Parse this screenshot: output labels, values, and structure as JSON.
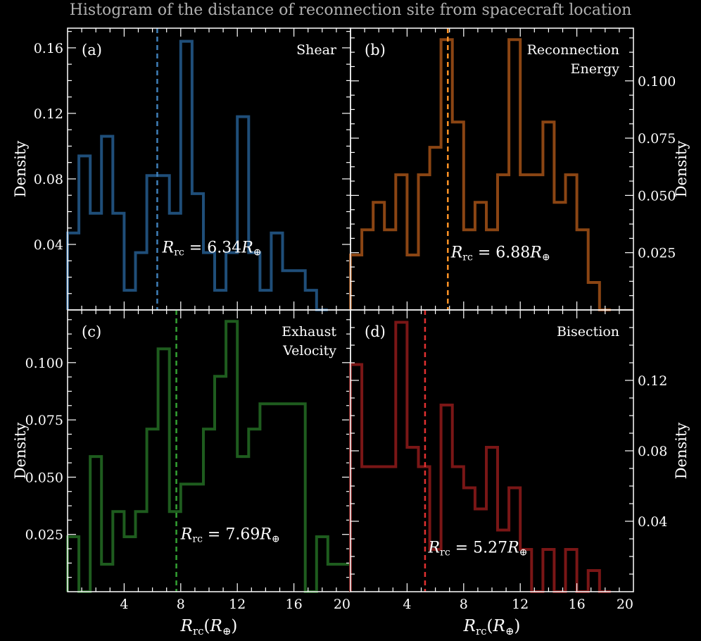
{
  "figure": {
    "title": "Histogram of the distance of reconnection site from spacecraft location"
  },
  "chart_data": [
    {
      "type": "histogram",
      "panel_label": "(a)",
      "method_label": [
        "Shear"
      ],
      "ylabel": "Density",
      "xlabel": "",
      "color": "#1f4e79",
      "mean_color": "#3f7fb8",
      "xlim": [
        0,
        20
      ],
      "ylim": [
        0,
        0.172
      ],
      "yticks": [
        0.04,
        0.08,
        0.12,
        0.16
      ],
      "ytick_labels": [
        "0.04",
        "0.08",
        "0.12",
        "0.16"
      ],
      "yaxis_side": "left",
      "xticks": [
        4,
        8,
        12,
        16
      ],
      "xtick_labels": [],
      "bin_edges": [
        0,
        0.8,
        1.6,
        2.4,
        3.2,
        4.0,
        4.8,
        5.6,
        6.4,
        7.2,
        8.0,
        8.8,
        9.6,
        10.4,
        11.2,
        12.0,
        12.8,
        13.6,
        14.4,
        15.2,
        16.0,
        16.8,
        17.6,
        18.4
      ],
      "values": [
        0.047,
        0.094,
        0.059,
        0.106,
        0.059,
        0.012,
        0.035,
        0.082,
        0.082,
        0.059,
        0.164,
        0.071,
        0.035,
        0.012,
        0.035,
        0.118,
        0.035,
        0.012,
        0.047,
        0.024,
        0.024,
        0.012,
        0.0
      ],
      "mean": 6.34,
      "mean_label": "6.34",
      "annotation_pos": [
        6.7,
        0.038
      ]
    },
    {
      "type": "histogram",
      "panel_label": "(b)",
      "method_label": [
        "Reconnection",
        "Energy"
      ],
      "ylabel": "Density",
      "xlabel": "",
      "color": "#8b4513",
      "mean_color": "#ff9326",
      "xlim": [
        0,
        20
      ],
      "ylim": [
        0,
        0.123
      ],
      "yticks": [
        0.025,
        0.05,
        0.075,
        0.1
      ],
      "ytick_labels": [
        "0.025",
        "0.050",
        "0.075",
        "0.100"
      ],
      "yaxis_side": "right",
      "xticks": [
        4,
        8,
        12,
        16
      ],
      "xtick_labels": [],
      "bin_edges": [
        0,
        0.8,
        1.6,
        2.4,
        3.2,
        4.0,
        4.8,
        5.6,
        6.4,
        7.2,
        8.0,
        8.8,
        9.6,
        10.4,
        11.2,
        12.0,
        12.8,
        13.6,
        14.4,
        15.2,
        16.0,
        16.8,
        17.6,
        18.4
      ],
      "values": [
        0.024,
        0.035,
        0.047,
        0.035,
        0.059,
        0.024,
        0.059,
        0.071,
        0.118,
        0.082,
        0.035,
        0.047,
        0.035,
        0.059,
        0.118,
        0.059,
        0.059,
        0.082,
        0.047,
        0.059,
        0.035,
        0.012,
        0.0
      ],
      "mean": 6.88,
      "mean_label": "6.88",
      "annotation_pos": [
        7.1,
        0.025
      ]
    },
    {
      "type": "histogram",
      "panel_label": "(c)",
      "method_label": [
        "Exhaust",
        "Velocity"
      ],
      "ylabel": "Density",
      "xlabel": "",
      "color": "#1e5c1e",
      "mean_color": "#32a032",
      "xlim": [
        0,
        20
      ],
      "ylim": [
        0,
        0.123
      ],
      "yticks": [
        0.025,
        0.05,
        0.075,
        0.1
      ],
      "ytick_labels": [
        "0.025",
        "0.050",
        "0.075",
        "0.100"
      ],
      "yaxis_side": "left",
      "xticks": [
        4,
        8,
        12,
        16,
        20
      ],
      "xtick_labels": [
        "4",
        "8",
        "12",
        "16",
        "20"
      ],
      "bin_edges": [
        0,
        0.8,
        1.6,
        2.4,
        3.2,
        4.0,
        4.8,
        5.6,
        6.4,
        7.2,
        8.0,
        8.8,
        9.6,
        10.4,
        11.2,
        12.0,
        12.8,
        13.6,
        14.4,
        15.2,
        16.0,
        16.8,
        17.6,
        18.4,
        19.2,
        20.0
      ],
      "values": [
        0.024,
        0.0,
        0.059,
        0.012,
        0.035,
        0.024,
        0.035,
        0.071,
        0.106,
        0.035,
        0.047,
        0.047,
        0.071,
        0.094,
        0.118,
        0.059,
        0.071,
        0.082,
        0.082,
        0.082,
        0.082,
        0.0,
        0.024,
        0.012,
        0.012
      ],
      "mean": 7.69,
      "mean_label": "7.69",
      "annotation_pos": [
        8.0,
        0.025
      ]
    },
    {
      "type": "histogram",
      "panel_label": "(d)",
      "method_label": [
        "Bisection"
      ],
      "ylabel": "Density",
      "xlabel": "",
      "color": "#7a1616",
      "mean_color": "#e03030",
      "xlim": [
        0,
        20
      ],
      "ylim": [
        0,
        0.16
      ],
      "yticks": [
        0.04,
        0.08,
        0.12
      ],
      "ytick_labels": [
        "0.04",
        "0.08",
        "0.12"
      ],
      "yaxis_side": "right",
      "xticks": [
        4,
        8,
        12,
        16,
        20
      ],
      "xtick_labels": [
        "4",
        "8",
        "12",
        "16",
        "20"
      ],
      "bin_edges": [
        0,
        0.8,
        1.6,
        2.4,
        3.2,
        4.0,
        4.8,
        5.6,
        6.4,
        7.2,
        8.0,
        8.8,
        9.6,
        10.4,
        11.2,
        12.0,
        12.8,
        13.6,
        14.4,
        15.2,
        16.0,
        16.8,
        17.6,
        18.4
      ],
      "values": [
        0.129,
        0.071,
        0.071,
        0.071,
        0.153,
        0.082,
        0.071,
        0.024,
        0.106,
        0.071,
        0.059,
        0.047,
        0.082,
        0.035,
        0.059,
        0.024,
        0.0,
        0.024,
        0.0,
        0.024,
        0.0,
        0.012,
        0.0
      ],
      "mean": 5.27,
      "mean_label": "5.27",
      "annotation_pos": [
        5.5,
        0.025
      ]
    }
  ],
  "shared": {
    "xlabel_prefix": "R",
    "xlabel_sub": "rc",
    "xlabel_paren_open": "(",
    "xlabel_inner": "R",
    "xlabel_inner_sub": "⊕",
    "xlabel_paren_close": ")",
    "mean_prefix": "R",
    "mean_sub": "rc",
    "mean_eq": " = ",
    "mean_unit": "R",
    "mean_unit_sub": "⊕"
  }
}
